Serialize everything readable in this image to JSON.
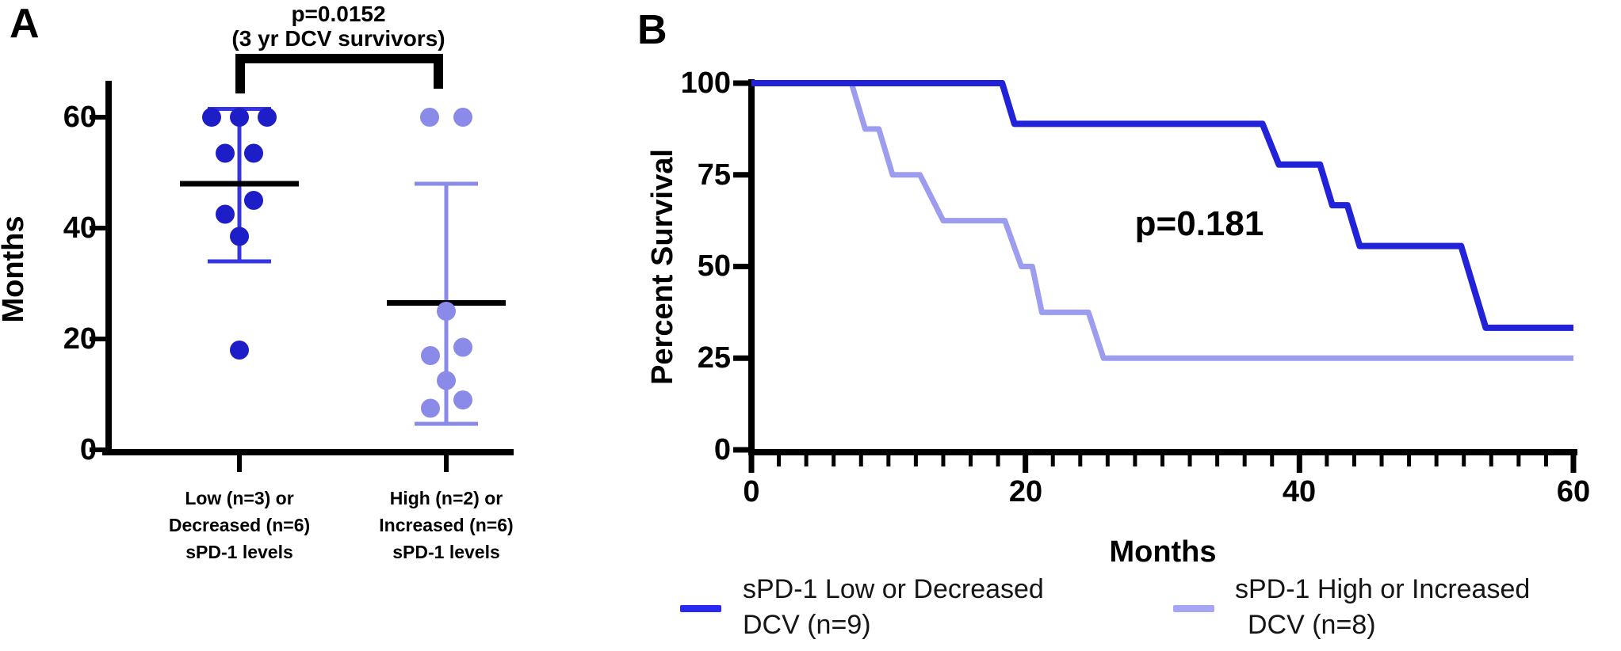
{
  "figure": {
    "background": "#ffffff"
  },
  "chart_data": [
    {
      "type": "scatter",
      "panel_label": "A",
      "ylabel": "Months",
      "ylim": [
        0,
        65
      ],
      "yticks": [
        0,
        20,
        40,
        60
      ],
      "significance": {
        "text": "p=0.0152",
        "subtext": "(3 yr DCV survivors)"
      },
      "groups": [
        {
          "name": "sPD-1 low or decreased",
          "label_lines": [
            "Low (n=3) or",
            "Decreased (n=6)",
            "sPD-1 levels"
          ],
          "color": "#1e1ec9",
          "err_color": "#3434e0",
          "mean": 48,
          "err_low": 34,
          "err_high": 61.5,
          "values_months": [
            60,
            60,
            60,
            53.5,
            53.5,
            45,
            42.5,
            38.5,
            18
          ],
          "points": [
            {
              "v": 60,
              "dx": -35
            },
            {
              "v": 60,
              "dx": 0
            },
            {
              "v": 60,
              "dx": 35
            },
            {
              "v": 53.5,
              "dx": -18
            },
            {
              "v": 53.5,
              "dx": 18
            },
            {
              "v": 45,
              "dx": 18
            },
            {
              "v": 42.5,
              "dx": -18
            },
            {
              "v": 38.5,
              "dx": 0
            },
            {
              "v": 18,
              "dx": 0
            }
          ]
        },
        {
          "name": "sPD-1 high or increased",
          "label_lines": [
            "High (n=2) or",
            "Increased (n=6)",
            "sPD-1 levels"
          ],
          "color": "#8a8ae8",
          "err_color": "#8a8ae8",
          "mean": 26.5,
          "err_low": 4.7,
          "err_high": 48,
          "values_months": [
            60,
            60,
            25,
            18.5,
            17,
            12.5,
            9,
            7.5
          ],
          "points": [
            {
              "v": 60,
              "dx": -21
            },
            {
              "v": 60,
              "dx": 21
            },
            {
              "v": 25,
              "dx": 0
            },
            {
              "v": 18.5,
              "dx": 21
            },
            {
              "v": 17,
              "dx": -20
            },
            {
              "v": 12.5,
              "dx": 0
            },
            {
              "v": 9,
              "dx": 21
            },
            {
              "v": 7.5,
              "dx": -20
            }
          ]
        }
      ]
    },
    {
      "type": "line",
      "subtype": "kaplan-meier-step",
      "panel_label": "B",
      "p_value_text": "p=0.181",
      "xlabel": "Months",
      "ylabel": "Percent Survival",
      "xlim": [
        0,
        60
      ],
      "ylim": [
        0,
        100
      ],
      "xticks": [
        0,
        20,
        40,
        60
      ],
      "yticks": [
        0,
        25,
        50,
        75,
        100
      ],
      "x_minor_step": 2,
      "legend_position": "bottom",
      "series": [
        {
          "name": "sPD-1 Low or Decreased DCV (n=9)",
          "legend_lines": [
            "sPD-1 Low or Decreased",
            "DCV (n=9)"
          ],
          "color": "#2222d8",
          "swatch_color": "#2929f2",
          "width": 8,
          "steps": [
            [
              0,
              100
            ],
            [
              18.3,
              100
            ],
            [
              19.2,
              88.9
            ],
            [
              37.3,
              88.9
            ],
            [
              38.5,
              77.8
            ],
            [
              41.5,
              77.8
            ],
            [
              42.4,
              66.7
            ],
            [
              43.5,
              66.7
            ],
            [
              44.4,
              55.6
            ],
            [
              51.8,
              55.6
            ],
            [
              53.6,
              33.3
            ],
            [
              60,
              33.3
            ]
          ]
        },
        {
          "name": "sPD-1 High or Increased DCV (n=8)",
          "legend_lines": [
            "sPD-1 High or Increased",
            "DCV (n=8)"
          ],
          "color": "#9d9df0",
          "swatch_color": "#a6a6f4",
          "width": 7,
          "steps": [
            [
              0,
              100
            ],
            [
              7.3,
              100
            ],
            [
              8.3,
              87.5
            ],
            [
              9.3,
              87.5
            ],
            [
              10.3,
              75
            ],
            [
              12.3,
              75
            ],
            [
              14,
              62.5
            ],
            [
              18.5,
              62.5
            ],
            [
              19.7,
              50
            ],
            [
              20.5,
              50
            ],
            [
              21.2,
              37.5
            ],
            [
              24.6,
              37.5
            ],
            [
              25.7,
              25
            ],
            [
              60,
              25
            ]
          ]
        }
      ]
    }
  ]
}
